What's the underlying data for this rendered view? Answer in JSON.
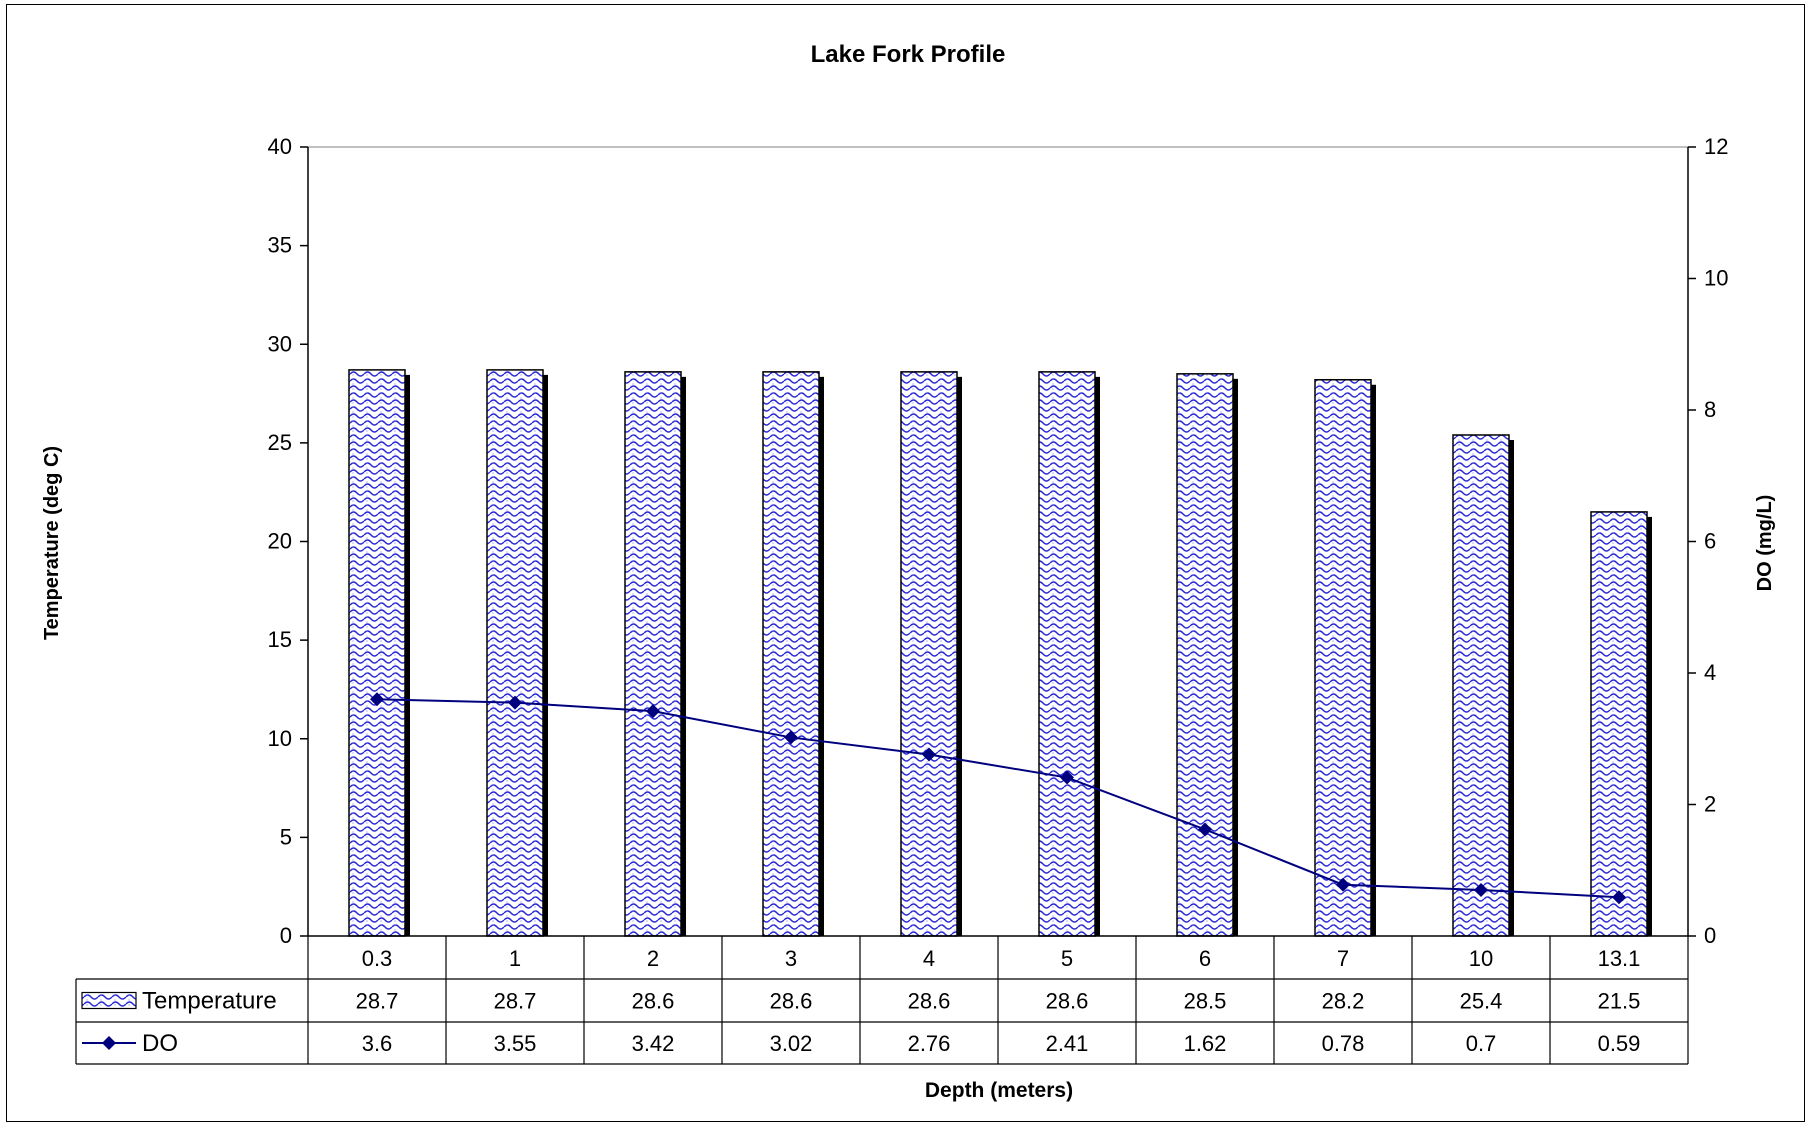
{
  "chart_data": {
    "type": "bar",
    "title": "Lake Fork Profile",
    "xlabel": "Depth (meters)",
    "ylabel": "Temperature (deg C)",
    "y2label": "DO (mg/L)",
    "categories": [
      "0.3",
      "1",
      "2",
      "3",
      "4",
      "5",
      "6",
      "7",
      "10",
      "13.1"
    ],
    "ylim": [
      0,
      40
    ],
    "yticks": [
      0,
      5,
      10,
      15,
      20,
      25,
      30,
      35,
      40
    ],
    "y2lim": [
      0,
      12
    ],
    "y2ticks": [
      0,
      2,
      4,
      6,
      8,
      10,
      12
    ],
    "series": [
      {
        "name": "Temperature",
        "type": "bar",
        "axis": "left",
        "values": [
          28.7,
          28.7,
          28.6,
          28.6,
          28.6,
          28.6,
          28.5,
          28.2,
          25.4,
          21.5
        ],
        "color": "#2b2bd6",
        "pattern": "blue wave hatch"
      },
      {
        "name": "DO",
        "type": "line",
        "axis": "right",
        "values": [
          3.6,
          3.55,
          3.42,
          3.02,
          2.76,
          2.41,
          1.62,
          0.78,
          0.7,
          0.59
        ],
        "color": "#00007f",
        "marker": "diamond"
      }
    ],
    "data_table": true,
    "grid": false,
    "legend": "in data table"
  }
}
